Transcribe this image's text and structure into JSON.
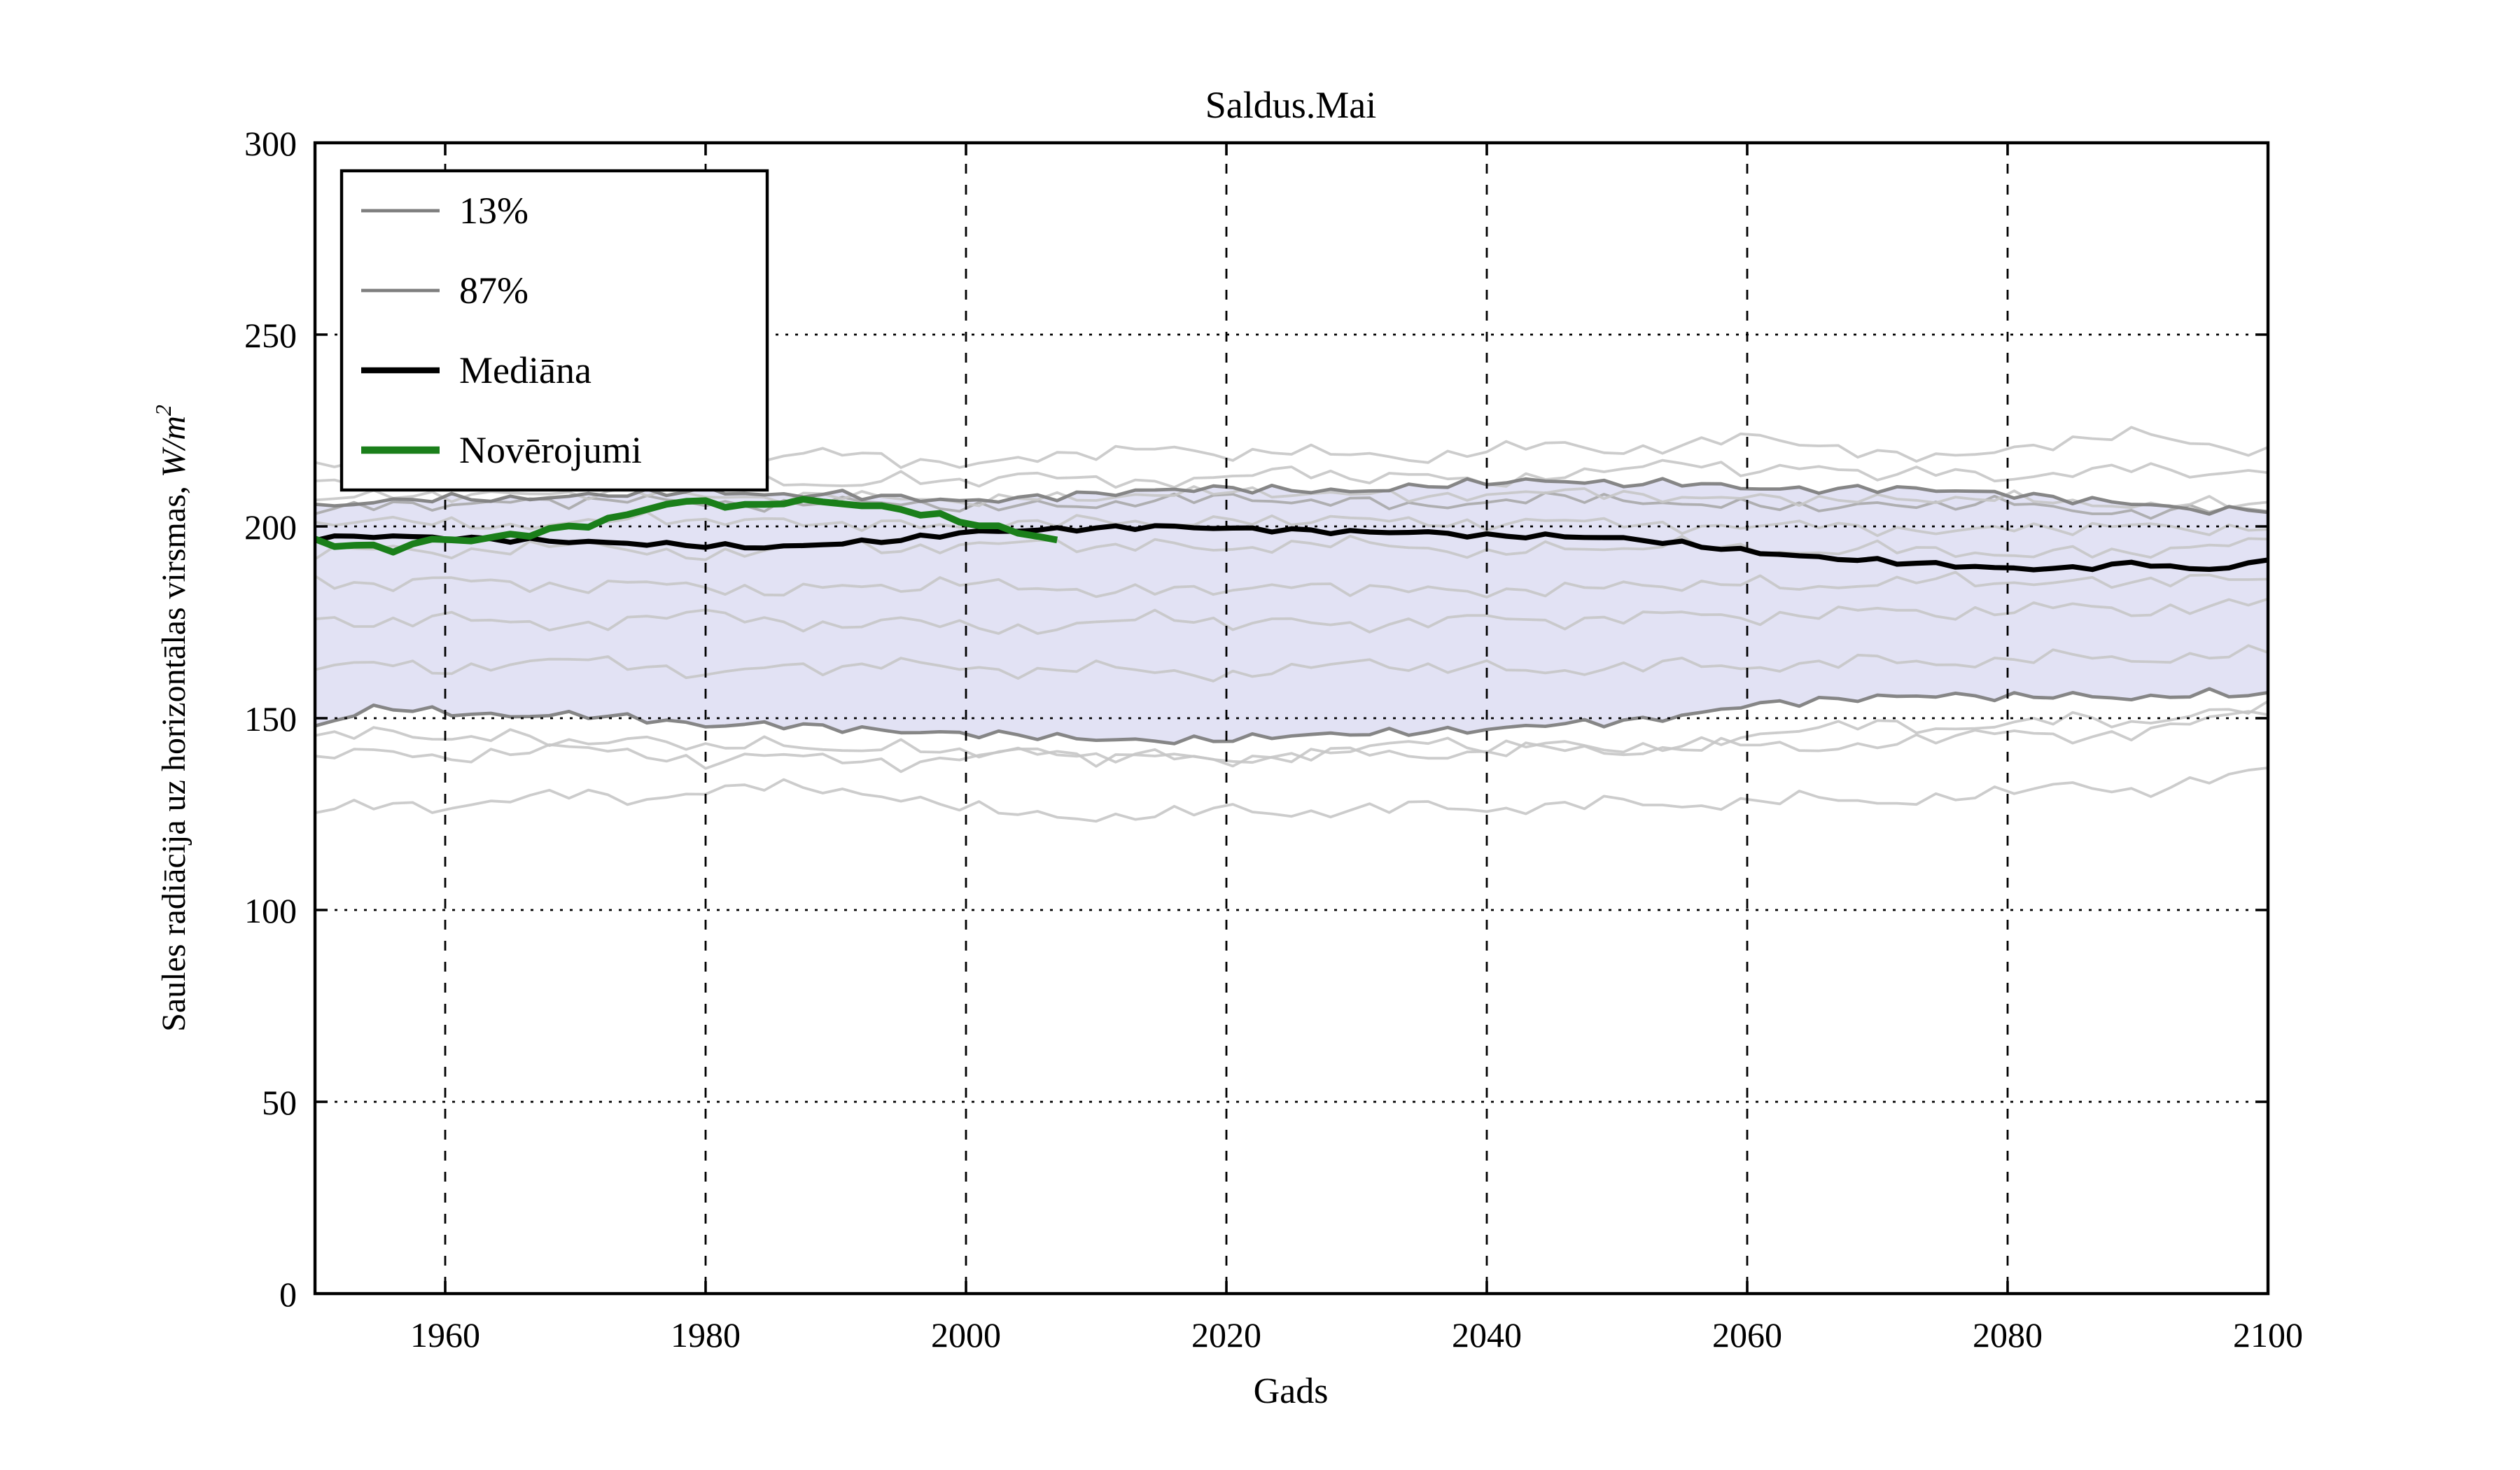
{
  "figure": {
    "ylabel_text": "Saules radiācija uz horizontālas virsmas, ",
    "ylabel_math": "W/m",
    "ylabel_sup": "2"
  },
  "chart_data": {
    "type": "line",
    "title": "Saldus.Mai",
    "xlabel": "Gads",
    "ylabel": "Saules radiācija uz horizontālas virsmas, W/m²",
    "xlim": [
      1950,
      2100
    ],
    "ylim": [
      0,
      300
    ],
    "xticks": [
      1960,
      1980,
      2000,
      2020,
      2040,
      2060,
      2080,
      2100
    ],
    "yticks": [
      0,
      50,
      100,
      150,
      200,
      250,
      300
    ],
    "grid": true,
    "legend_position": "upper left",
    "colors": {
      "band_fill": "#e2e2f4",
      "band_edge": "#7f7f7f",
      "ensemble": "#c7c7c7",
      "ensemble_dark": "#a9a9a9",
      "median": "#000000",
      "observations": "#1a7f1a",
      "grid": "#000000"
    },
    "legend": [
      {
        "label": "13%",
        "color": "#7f7f7f",
        "width": 2.4
      },
      {
        "label": "87%",
        "color": "#7f7f7f",
        "width": 2.4
      },
      {
        "label": "Mediāna",
        "color": "#000000",
        "width": 4.2
      },
      {
        "label": "Novērojumi",
        "color": "#1a7f1a",
        "width": 5.2
      }
    ],
    "x_anchor_years": [
      1950,
      1955,
      1960,
      1965,
      1970,
      1975,
      1980,
      1985,
      1990,
      1995,
      2000,
      2005,
      2010,
      2015,
      2020,
      2025,
      2030,
      2035,
      2040,
      2045,
      2050,
      2055,
      2060,
      2065,
      2070,
      2075,
      2080,
      2085,
      2090,
      2095,
      2100
    ],
    "series": [
      {
        "name": "ensemble-1",
        "role": "ensemble",
        "color": "#c7c7c7",
        "width": 1.9,
        "wiggle": 1.7,
        "values": [
          217,
          215,
          218,
          216,
          219,
          217,
          215,
          218,
          220,
          217,
          216,
          218,
          219,
          221,
          218,
          220,
          219,
          217,
          220,
          222,
          219,
          221,
          224,
          221,
          219,
          218,
          220,
          222,
          225,
          221,
          219
        ]
      },
      {
        "name": "ensemble-2",
        "role": "ensemble",
        "color": "#c7c7c7",
        "width": 1.9,
        "wiggle": 1.6,
        "values": [
          211,
          213,
          210,
          212,
          214,
          211,
          213,
          212,
          210,
          213,
          211,
          214,
          212,
          211,
          213,
          215,
          212,
          214,
          211,
          213,
          215,
          217,
          214,
          216,
          213,
          215,
          212,
          214,
          216,
          213,
          215
        ]
      },
      {
        "name": "ensemble-3",
        "role": "ensemble",
        "color": "#a9a9a9",
        "width": 1.9,
        "wiggle": 1.5,
        "values": [
          204,
          206,
          205,
          207,
          206,
          207.5,
          206,
          205,
          207,
          206,
          204.5,
          206,
          205,
          207,
          208,
          206,
          207,
          205,
          206,
          208,
          207,
          205.5,
          206,
          204.5,
          206,
          205,
          207,
          204,
          203,
          205,
          204
        ]
      },
      {
        "name": "ensemble-4",
        "role": "ensemble",
        "color": "#c7c7c7",
        "width": 1.9,
        "wiggle": 1.5,
        "values": [
          207,
          208.5,
          207.5,
          209,
          208,
          209.5,
          208,
          207,
          208.5,
          207.5,
          206,
          208,
          207,
          208.5,
          209.5,
          208,
          209,
          207.5,
          208,
          209.5,
          208.5,
          207,
          208,
          206.5,
          207.5,
          206.5,
          208,
          206,
          205,
          206.5,
          205.5
        ]
      },
      {
        "name": "ensemble-5",
        "role": "ensemble",
        "color": "#c7c7c7",
        "width": 1.9,
        "wiggle": 1.5,
        "values": [
          200,
          202,
          201,
          199.5,
          201,
          202.5,
          201,
          202,
          200,
          201,
          199.5,
          201,
          202,
          200,
          202,
          201,
          202.5,
          201,
          200,
          202,
          201,
          199.5,
          200,
          201,
          199,
          198.5,
          200,
          199,
          201,
          198.5,
          200
        ]
      },
      {
        "name": "ensemble-6",
        "role": "ensemble",
        "color": "#c7c7c7",
        "width": 1.9,
        "wiggle": 1.6,
        "values": [
          193,
          195,
          192.5,
          194,
          196,
          193.5,
          192,
          194,
          196,
          193.5,
          195,
          196.5,
          194,
          196,
          193.5,
          195,
          196.5,
          194,
          192.5,
          195,
          193.5,
          196,
          194,
          192.5,
          195,
          193.5,
          192,
          194,
          192.5,
          195,
          196.5
        ]
      },
      {
        "name": "ensemble-7",
        "role": "ensemble",
        "color": "#c7c7c7",
        "width": 1.9,
        "wiggle": 1.7,
        "values": [
          186,
          184,
          187,
          185,
          183.5,
          186,
          184,
          182.5,
          185,
          183.5,
          186,
          184,
          182.5,
          184,
          183,
          185,
          183.5,
          184,
          182.5,
          183.5,
          185,
          184,
          186,
          183.5,
          185,
          187,
          184.5,
          186,
          185,
          187,
          186
        ]
      },
      {
        "name": "ensemble-8",
        "role": "ensemble",
        "color": "#c7c7c7",
        "width": 1.9,
        "wiggle": 1.7,
        "values": [
          176,
          174,
          177,
          175,
          173.5,
          176,
          178,
          175,
          173.5,
          176,
          174,
          172.5,
          175,
          177,
          174,
          176,
          173.5,
          175,
          177,
          174.5,
          176,
          178,
          175.5,
          177,
          179,
          176.5,
          178,
          180,
          177,
          179,
          181
        ]
      },
      {
        "name": "ensemble-9",
        "role": "ensemble",
        "color": "#c7c7c7",
        "width": 1.9,
        "wiggle": 1.6,
        "values": [
          163,
          165,
          162,
          164,
          166,
          163.5,
          161,
          164,
          162.5,
          165,
          163,
          161.5,
          164,
          162,
          160.5,
          163,
          165,
          162.5,
          164,
          161.5,
          163,
          165,
          162.5,
          164,
          166,
          163.5,
          165,
          167,
          164.5,
          166,
          168
        ]
      },
      {
        "name": "ensemble-10",
        "role": "ensemble",
        "color": "#c7c7c7",
        "width": 1.9,
        "wiggle": 1.6,
        "values": [
          140,
          142,
          139,
          141,
          143,
          140.5,
          138,
          141,
          139.5,
          137.5,
          140,
          142,
          139,
          141,
          138.5,
          140,
          142,
          144.5,
          142,
          144,
          141.5,
          143,
          145,
          147.5,
          149,
          146.5,
          148.5,
          150.5,
          148,
          151.5,
          153
        ]
      },
      {
        "name": "ensemble-11",
        "role": "ensemble",
        "color": "#c7c7c7",
        "width": 1.9,
        "wiggle": 1.6,
        "values": [
          145,
          147,
          144,
          146,
          143,
          145,
          142,
          144,
          141,
          143,
          140.5,
          142,
          139.5,
          141,
          138.5,
          140,
          142,
          139.5,
          141,
          143,
          140.5,
          142,
          144,
          141.5,
          143,
          145,
          147,
          144.5,
          146,
          150,
          152
        ]
      },
      {
        "name": "ensemble-12",
        "role": "ensemble",
        "color": "#c7c7c7",
        "width": 1.9,
        "wiggle": 1.7,
        "values": [
          126,
          128,
          126,
          129,
          131,
          128,
          131,
          133,
          131,
          129,
          127,
          125,
          123.5,
          125,
          127,
          124.5,
          126,
          128,
          125.5,
          127,
          129,
          126.5,
          128,
          130,
          127.5,
          129,
          131,
          133,
          130,
          134,
          137
        ]
      },
      {
        "name": "13%",
        "role": "band-lower",
        "color": "#7f7f7f",
        "width": 2.4,
        "wiggle": 1.2,
        "values": [
          148,
          153,
          151.5,
          150.5,
          151,
          150,
          148,
          148.5,
          147.5,
          146.5,
          146,
          145.5,
          144.5,
          144,
          144.5,
          145.5,
          146,
          146.5,
          147,
          148.5,
          149,
          150.5,
          153.5,
          154.5,
          155.5,
          156,
          155.5,
          156,
          155,
          156.5,
          156
        ]
      },
      {
        "name": "87%",
        "role": "band-upper",
        "color": "#7f7f7f",
        "width": 2.4,
        "wiggle": 1.2,
        "values": [
          205,
          206.5,
          207.5,
          207,
          208,
          208.5,
          209.5,
          208,
          208.5,
          207.5,
          206.5,
          207.5,
          208.5,
          209.5,
          210,
          209.5,
          209,
          210.5,
          211.5,
          212,
          211,
          211.5,
          210,
          209.5,
          210,
          209.5,
          208.5,
          207,
          206,
          204,
          204.5
        ]
      },
      {
        "name": "Mediāna",
        "role": "median",
        "color": "#000000",
        "width": 3.6,
        "wiggle": 0.7,
        "values": [
          197,
          197.5,
          197,
          196.5,
          196,
          195.5,
          195,
          194.5,
          195.5,
          196.5,
          198.5,
          199,
          199.5,
          200,
          199.5,
          199,
          198.5,
          198.5,
          197.5,
          197.5,
          197,
          195.5,
          193.5,
          192,
          191,
          190,
          189,
          189,
          190.5,
          188.5,
          191
        ]
      },
      {
        "name": "Novērojumi",
        "role": "observations",
        "color": "#1a7f1a",
        "width": 4.8,
        "wiggle": 0.9,
        "x": [
          1950,
          1953,
          1956,
          1959,
          1962,
          1965,
          1968,
          1971,
          1974,
          1977,
          1980,
          1983,
          1986,
          1989,
          1992,
          1995,
          1998,
          2001,
          2004,
          2007
        ],
        "values": [
          196,
          195,
          194,
          196.5,
          196.5,
          197.5,
          199,
          200.5,
          203,
          206,
          206.5,
          205,
          206.5,
          206.5,
          205.5,
          204.5,
          202.5,
          200.5,
          198.5,
          196.5
        ]
      }
    ]
  }
}
